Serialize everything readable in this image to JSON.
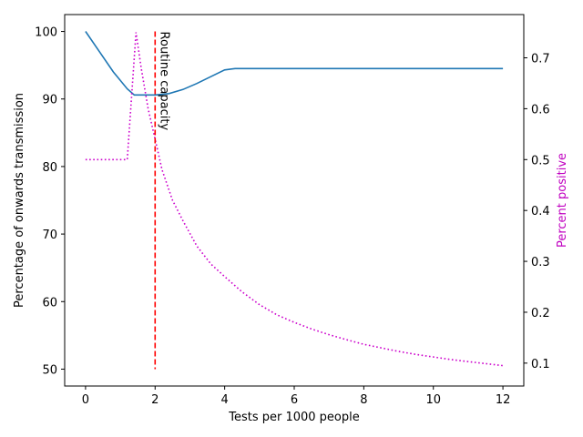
{
  "chart_data": {
    "type": "line",
    "title": "",
    "xlabel": "Tests per 1000 people",
    "ylabel": "Percentage of onwards transmission",
    "y2label": "Percent positive",
    "xlim": [
      -0.6,
      12.6
    ],
    "ylim": [
      47.5,
      102.5
    ],
    "y2lim": [
      0.055,
      0.785
    ],
    "xticks": [
      "0",
      "2",
      "4",
      "6",
      "8",
      "10",
      "12"
    ],
    "yticks": [
      "50",
      "60",
      "70",
      "80",
      "90",
      "100"
    ],
    "y2ticks": [
      "0.1",
      "0.2",
      "0.3",
      "0.4",
      "0.5",
      "0.6",
      "0.7"
    ],
    "grid": false,
    "colors": {
      "transmission": "#1f77b4",
      "positive": "#cc00cc",
      "capacity": "#ff0000",
      "y2label": "#c000c0"
    },
    "series": [
      {
        "name": "",
        "axis": "left",
        "style": "solid",
        "x": [
          0,
          0.4,
          0.8,
          1.2,
          1.4,
          1.6,
          2.0,
          2.4,
          2.8,
          3.2,
          3.6,
          4.0,
          4.3,
          5,
          6,
          7,
          8,
          9,
          10,
          11,
          12
        ],
        "y": [
          100,
          97,
          94,
          91.5,
          90.6,
          90.6,
          90.6,
          90.8,
          91.4,
          92.3,
          93.3,
          94.3,
          94.5,
          94.5,
          94.5,
          94.5,
          94.5,
          94.5,
          94.5,
          94.5,
          94.5
        ]
      },
      {
        "name": "",
        "axis": "right",
        "style": "dotted",
        "x": [
          0,
          0.5,
          1.0,
          1.2,
          1.45,
          1.6,
          1.8,
          2.0,
          2.2,
          2.5,
          2.8,
          3.2,
          3.6,
          4.0,
          4.5,
          5,
          5.5,
          6,
          6.5,
          7,
          7.5,
          8,
          8.5,
          9,
          9.5,
          10,
          10.5,
          11,
          11.5,
          12
        ],
        "y": [
          0.5,
          0.5,
          0.5,
          0.5,
          0.75,
          0.68,
          0.6,
          0.54,
          0.48,
          0.42,
          0.38,
          0.33,
          0.295,
          0.27,
          0.24,
          0.215,
          0.195,
          0.18,
          0.167,
          0.156,
          0.146,
          0.137,
          0.13,
          0.123,
          0.117,
          0.112,
          0.107,
          0.103,
          0.099,
          0.095
        ]
      }
    ],
    "vline": {
      "x": 2,
      "ymin": 50,
      "ymax": 100,
      "label": "Routine capacity"
    }
  }
}
